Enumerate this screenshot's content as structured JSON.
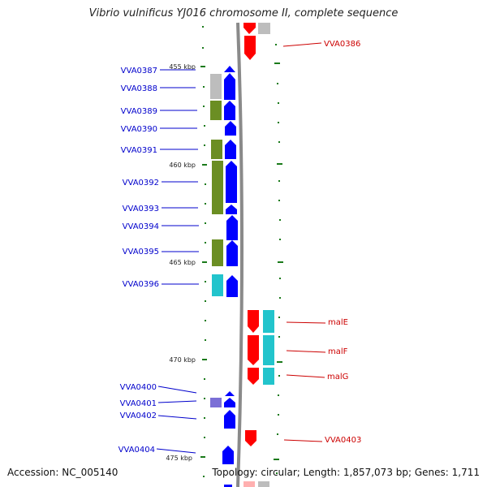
{
  "title": "Vibrio vulnificus YJ016 chromosome II, complete sequence",
  "accession_text": "Accession: NC_005140",
  "summary_text": "Topology: circular; Length: 1,857,073 bp; Genes: 1,711",
  "colors": {
    "backbone": "#8a8a8a",
    "forward": "#0000ff",
    "reverse": "#ff0000",
    "reverse_label": "#cc0000",
    "forward_label": "#0000cc",
    "cog_green": "#6b8e23",
    "cog_grey": "#bdbdbd",
    "cog_cyan": "#22c4cc",
    "cog_purple": "#7b6fd6",
    "tick": "#1a7a1a"
  },
  "ruler_labels": [
    "455 kbp",
    "460 kbp",
    "465 kbp",
    "470 kbp",
    "475 kbp"
  ],
  "left_labels": [
    "VVA0387",
    "VVA0388",
    "VVA0389",
    "VVA0390",
    "VVA0391",
    "VVA0392",
    "VVA0393",
    "VVA0394",
    "VVA0395",
    "VVA0396",
    "VVA0400",
    "VVA0401",
    "VVA0402",
    "VVA0404"
  ],
  "right_labels": [
    "VVA0386",
    "malE",
    "malF",
    "malG",
    "VVA0403"
  ]
}
